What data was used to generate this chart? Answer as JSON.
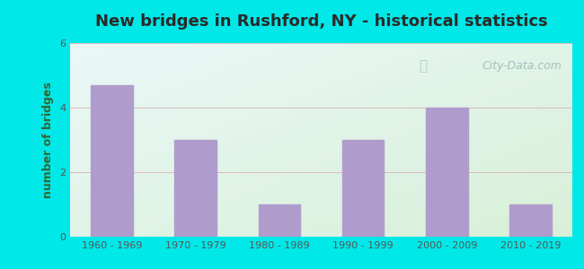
{
  "title": "New bridges in Rushford, NY - historical statistics",
  "categories": [
    "1960 - 1969",
    "1970 - 1979",
    "1980 - 1989",
    "1990 - 1999",
    "2000 - 2009",
    "2010 - 2019"
  ],
  "values": [
    4.7,
    3.0,
    1.0,
    3.0,
    4.0,
    1.0
  ],
  "bar_color": "#b09ccc",
  "ylim": [
    0,
    6
  ],
  "yticks": [
    0,
    2,
    4,
    6
  ],
  "ylabel": "number of bridges",
  "outer_bg": "#00e8e8",
  "plot_bg_topleft": "#eaf8f8",
  "plot_bg_bottomright": "#d8f0d8",
  "title_color": "#2a2a2a",
  "axis_label_color": "#336633",
  "tick_label_color": "#555555",
  "grid_color": "#ddbbbb",
  "watermark_text": "City-Data.com",
  "watermark_color": "#99bbbb",
  "title_fontsize": 13,
  "ylabel_fontsize": 9,
  "tick_fontsize": 8
}
